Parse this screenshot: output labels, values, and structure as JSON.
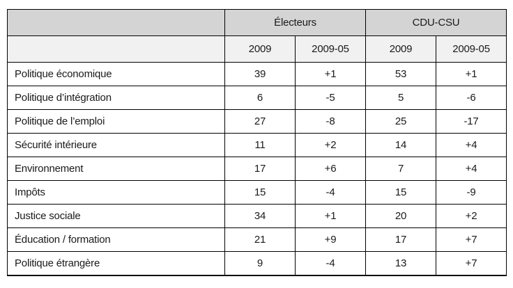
{
  "chart_data": {
    "type": "table",
    "column_groups": [
      "",
      "Électeurs",
      "CDU-CSU"
    ],
    "columns": [
      "",
      "2009",
      "2009-05",
      "2009",
      "2009-05"
    ],
    "rows": [
      {
        "label": "Politique économique",
        "values": [
          "39",
          "+1",
          "53",
          "+1"
        ]
      },
      {
        "label": "Politique d’intégration",
        "values": [
          "6",
          "-5",
          "5",
          "-6"
        ]
      },
      {
        "label": "Politique de l’emploi",
        "values": [
          "27",
          "-8",
          "25",
          "-17"
        ]
      },
      {
        "label": "Sécurité intérieure",
        "values": [
          "11",
          "+2",
          "14",
          "+4"
        ]
      },
      {
        "label": "Environnement",
        "values": [
          "17",
          "+6",
          "7",
          "+4"
        ]
      },
      {
        "label": "Impôts",
        "values": [
          "15",
          "-4",
          "15",
          "-9"
        ]
      },
      {
        "label": "Justice sociale",
        "values": [
          "34",
          "+1",
          "20",
          "+2"
        ]
      },
      {
        "label": "Éducation / formation",
        "values": [
          "21",
          "+9",
          "17",
          "+7"
        ]
      },
      {
        "label": "Politique étrangère",
        "values": [
          "9",
          "-4",
          "13",
          "+7"
        ]
      }
    ],
    "layout": {
      "header_bg": "#d4d4d4",
      "subheader_bg": "#f1f1f1",
      "row_bg": "#ffffff",
      "border_color": "#000000",
      "grid": "on"
    }
  }
}
